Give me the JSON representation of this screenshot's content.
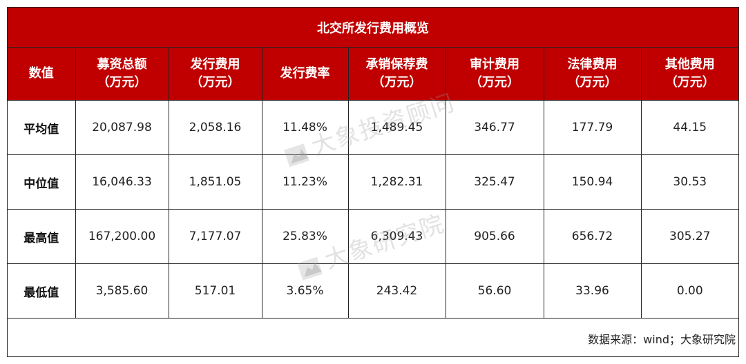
{
  "table": {
    "title": "北交所发行费用概览",
    "headers": [
      {
        "line1": "数值",
        "line2": ""
      },
      {
        "line1": "募资总额",
        "line2": "（万元）"
      },
      {
        "line1": "发行费用",
        "line2": "（万元）"
      },
      {
        "line1": "发行费率",
        "line2": ""
      },
      {
        "line1": "承销保荐费",
        "line2": "（万元）"
      },
      {
        "line1": "审计费用",
        "line2": "（万元）"
      },
      {
        "line1": "法律费用",
        "line2": "（万元）"
      },
      {
        "line1": "其他费用",
        "line2": "（万元）"
      }
    ],
    "rows": [
      {
        "label": "平均值",
        "values": [
          "20,087.98",
          "2,058.16",
          "11.48%",
          "1,489.45",
          "346.77",
          "177.79",
          "44.15"
        ]
      },
      {
        "label": "中位值",
        "values": [
          "16,046.33",
          "1,851.05",
          "11.23%",
          "1,282.31",
          "325.47",
          "150.94",
          "30.53"
        ]
      },
      {
        "label": "最高值",
        "values": [
          "167,200.00",
          "7,177.07",
          "25.83%",
          "6,309.43",
          "905.66",
          "656.72",
          "305.27"
        ]
      },
      {
        "label": "最低值",
        "values": [
          "3,585.60",
          "517.01",
          "3.65%",
          "243.42",
          "56.60",
          "33.96",
          "0.00"
        ]
      }
    ],
    "source": "数据来源：wind；大象研究院"
  },
  "watermarks": {
    "top": "大象投资顾问",
    "bottom": "大象研究院"
  },
  "colors": {
    "header_bg": "#c00000",
    "header_text": "#ffffff",
    "border": "#222222"
  }
}
